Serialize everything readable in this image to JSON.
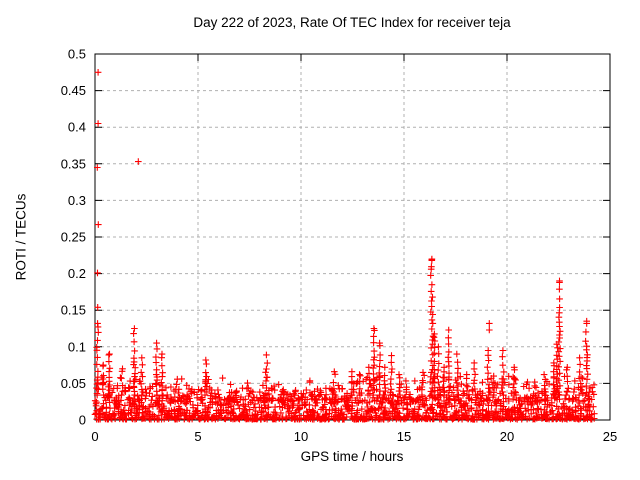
{
  "chart_data": {
    "type": "scatter",
    "title": "Day 222 of 2023, Rate Of TEC Index for receiver teja",
    "xlabel": "GPS time / hours",
    "ylabel": "ROTI / TECUs",
    "xlim": [
      0,
      25
    ],
    "ylim": [
      0,
      0.5
    ],
    "xticks": [
      {
        "v": 0,
        "label": "0"
      },
      {
        "v": 5,
        "label": "5"
      },
      {
        "v": 10,
        "label": "10"
      },
      {
        "v": 15,
        "label": "15"
      },
      {
        "v": 20,
        "label": "20"
      },
      {
        "v": 25,
        "label": "25"
      }
    ],
    "yticks": [
      {
        "v": 0,
        "label": "0"
      },
      {
        "v": 0.05,
        "label": "0.05"
      },
      {
        "v": 0.1,
        "label": "0.1"
      },
      {
        "v": 0.15,
        "label": "0.15"
      },
      {
        "v": 0.2,
        "label": "0.2"
      },
      {
        "v": 0.25,
        "label": "0.25"
      },
      {
        "v": 0.3,
        "label": "0.3"
      },
      {
        "v": 0.35,
        "label": "0.35"
      },
      {
        "v": 0.4,
        "label": "0.4"
      },
      {
        "v": 0.45,
        "label": "0.45"
      },
      {
        "v": 0.5,
        "label": "0.5"
      }
    ],
    "grid": true,
    "legend": "none",
    "marker": "plus",
    "marker_color": "#ff0000",
    "grid_color": "#b0b0b0",
    "axis_color": "#000000",
    "data_start_hour": 0,
    "data_end_hour": 24.25,
    "base_band": {
      "y_min": 0,
      "y_max": 0.03
    },
    "outliers": [
      [
        0.15,
        0.475
      ],
      [
        0.15,
        0.405
      ],
      [
        0.11,
        0.345
      ],
      [
        2.1,
        0.353
      ],
      [
        0.16,
        0.267
      ],
      [
        0.12,
        0.201
      ],
      [
        0.13,
        0.154
      ],
      [
        19.14,
        0.132
      ],
      [
        19.14,
        0.123
      ],
      [
        16.35,
        0.219
      ],
      [
        16.32,
        0.206
      ]
    ],
    "envelope_columns": [
      "x_start_hour",
      "x_end_hour",
      "peak_roti"
    ],
    "envelope": [
      [
        0.0,
        0.3,
        0.132
      ],
      [
        0.3,
        0.55,
        0.075
      ],
      [
        0.55,
        0.8,
        0.09
      ],
      [
        0.8,
        1.2,
        0.055
      ],
      [
        1.2,
        1.55,
        0.07
      ],
      [
        1.55,
        1.8,
        0.055
      ],
      [
        1.8,
        2.1,
        0.125
      ],
      [
        2.1,
        2.45,
        0.085
      ],
      [
        2.45,
        2.85,
        0.05
      ],
      [
        2.85,
        3.1,
        0.105
      ],
      [
        3.1,
        3.35,
        0.09
      ],
      [
        3.35,
        3.9,
        0.048
      ],
      [
        3.9,
        4.4,
        0.058
      ],
      [
        4.4,
        5.25,
        0.048
      ],
      [
        5.25,
        5.55,
        0.082
      ],
      [
        5.55,
        6.1,
        0.05
      ],
      [
        6.1,
        6.6,
        0.058
      ],
      [
        6.6,
        7.1,
        0.044
      ],
      [
        7.1,
        7.6,
        0.052
      ],
      [
        7.6,
        8.2,
        0.048
      ],
      [
        8.2,
        8.5,
        0.089
      ],
      [
        8.5,
        9.1,
        0.056
      ],
      [
        9.1,
        9.6,
        0.048
      ],
      [
        9.6,
        10.1,
        0.046
      ],
      [
        10.1,
        10.6,
        0.056
      ],
      [
        10.6,
        11.1,
        0.046
      ],
      [
        11.1,
        11.5,
        0.052
      ],
      [
        11.5,
        11.8,
        0.066
      ],
      [
        11.8,
        12.2,
        0.052
      ],
      [
        12.2,
        12.7,
        0.066
      ],
      [
        12.7,
        13.1,
        0.062
      ],
      [
        13.1,
        13.4,
        0.072
      ],
      [
        13.4,
        13.65,
        0.125
      ],
      [
        13.65,
        13.95,
        0.105
      ],
      [
        13.95,
        14.2,
        0.072
      ],
      [
        14.2,
        14.55,
        0.088
      ],
      [
        14.55,
        15.0,
        0.062
      ],
      [
        15.0,
        15.6,
        0.056
      ],
      [
        15.6,
        16.1,
        0.065
      ],
      [
        16.1,
        16.55,
        0.22
      ],
      [
        16.55,
        16.85,
        0.1
      ],
      [
        16.85,
        17.05,
        0.072
      ],
      [
        17.05,
        17.25,
        0.123
      ],
      [
        17.25,
        17.75,
        0.09
      ],
      [
        17.75,
        18.25,
        0.062
      ],
      [
        18.25,
        18.65,
        0.078
      ],
      [
        18.65,
        18.95,
        0.058
      ],
      [
        18.95,
        19.25,
        0.095
      ],
      [
        19.25,
        19.45,
        0.06
      ],
      [
        19.45,
        20.15,
        0.095
      ],
      [
        20.15,
        20.55,
        0.072
      ],
      [
        20.55,
        21.1,
        0.058
      ],
      [
        21.1,
        21.6,
        0.052
      ],
      [
        21.6,
        22.1,
        0.062
      ],
      [
        22.1,
        22.4,
        0.078
      ],
      [
        22.4,
        22.65,
        0.19
      ],
      [
        22.65,
        23.3,
        0.072
      ],
      [
        23.3,
        23.65,
        0.085
      ],
      [
        23.65,
        24.0,
        0.135
      ],
      [
        24.0,
        24.25,
        0.055
      ]
    ]
  }
}
